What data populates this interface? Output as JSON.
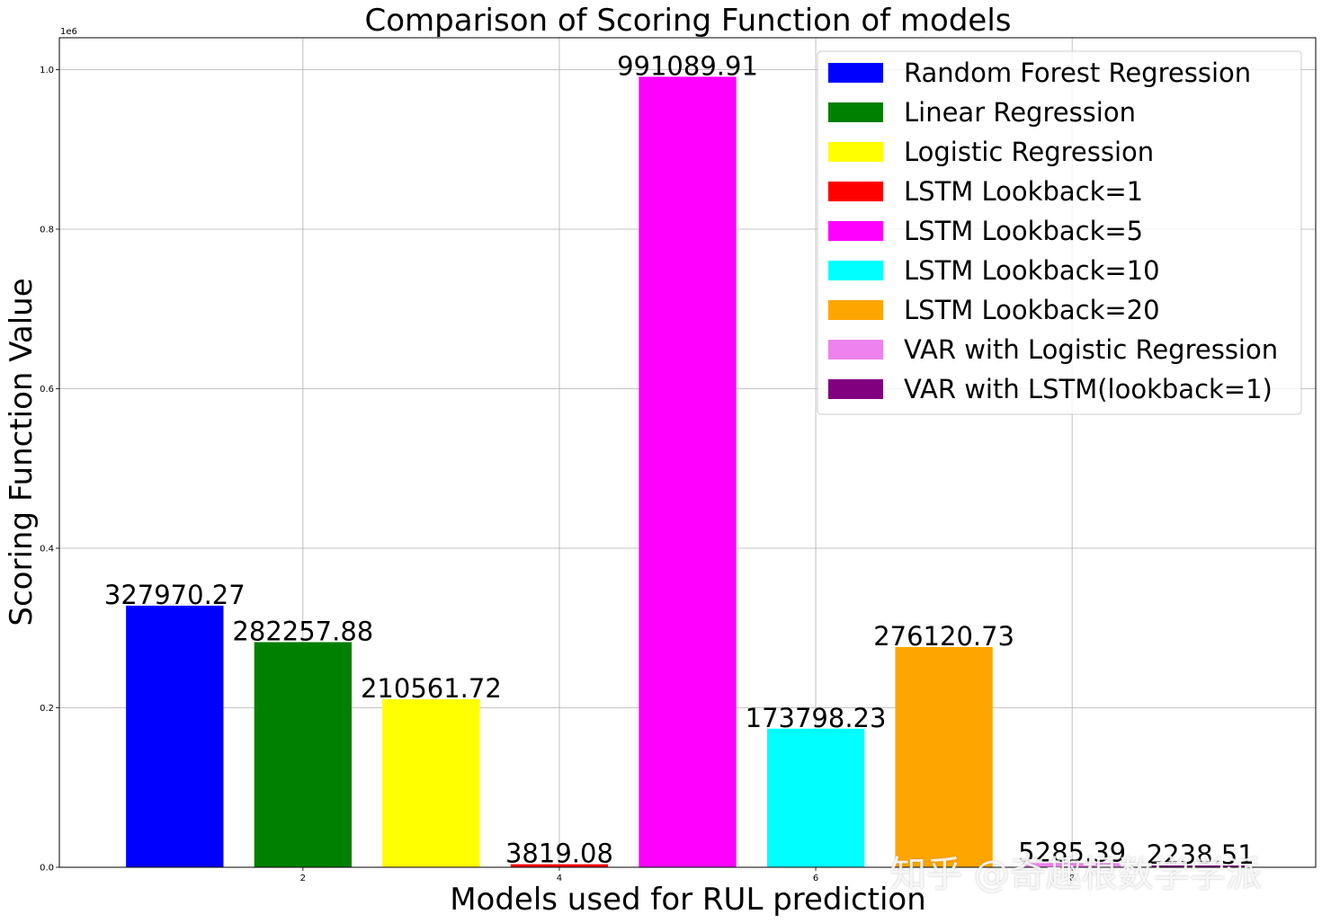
{
  "chart_data": {
    "type": "bar",
    "title": "Comparison of Scoring Function of models",
    "xlabel": "Models used for RUL prediction",
    "ylabel": "Scoring Function Value",
    "y_offset_label": "1e6",
    "ylim": [
      0,
      1040000
    ],
    "xlim": [
      0.1,
      9.9
    ],
    "grid": true,
    "legend_position": "upper right",
    "x_ticks": [
      2,
      4,
      6,
      8
    ],
    "y_ticks": [
      0.0,
      0.2,
      0.4,
      0.6,
      0.8,
      1.0
    ],
    "bars": [
      {
        "x": 1,
        "value": 327970.27,
        "label": "327970.27",
        "color": "#0000ff",
        "name": "Random Forest Regression"
      },
      {
        "x": 2,
        "value": 282257.88,
        "label": "282257.88",
        "color": "#008000",
        "name": "Linear Regression"
      },
      {
        "x": 3,
        "value": 210561.72,
        "label": "210561.72",
        "color": "#ffff00",
        "name": "Logistic Regression"
      },
      {
        "x": 4,
        "value": 3819.08,
        "label": "3819.08",
        "color": "#ff0000",
        "name": "LSTM Lookback=1"
      },
      {
        "x": 5,
        "value": 991089.91,
        "label": "991089.91",
        "color": "#ff00ff",
        "name": "LSTM Lookback=5"
      },
      {
        "x": 6,
        "value": 173798.23,
        "label": "173798.23",
        "color": "#00ffff",
        "name": "LSTM Lookback=10"
      },
      {
        "x": 7,
        "value": 276120.73,
        "label": "276120.73",
        "color": "#ffa500",
        "name": "LSTM Lookback=20"
      },
      {
        "x": 8,
        "value": 5285.39,
        "label": "5285.39",
        "color": "#ee82ee",
        "name": "VAR with Logistic Regression"
      },
      {
        "x": 9,
        "value": 2238.51,
        "label": "2238.51",
        "color": "#800080",
        "name": "VAR with LSTM(lookback=1)"
      }
    ]
  },
  "watermark": "知乎 @奇趣根数学学派"
}
